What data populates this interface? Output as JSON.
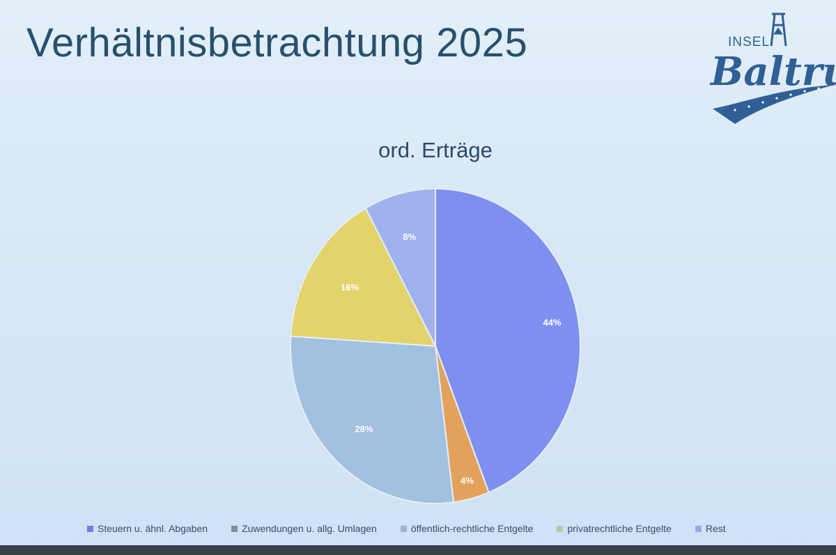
{
  "slide": {
    "title": "Verhältnisbetrachtung 2025"
  },
  "logo": {
    "small_text": "INSEL",
    "main_text": "Baltrum"
  },
  "chart_data": {
    "type": "pie",
    "title": "ord. Erträge",
    "legend_position": "bottom",
    "categories": [
      "Steuern u. ähnl. Abgaben",
      "Zuwendungen u. allg. Umlagen",
      "öffentlich-rechtliche Entgelte",
      "privatrechtliche Entgelte",
      "Rest"
    ],
    "values": [
      44,
      4,
      28,
      16,
      8
    ],
    "data_labels": [
      "44%",
      "4%",
      "28%",
      "16%",
      "8%"
    ],
    "colors": [
      "#7f8ff0",
      "#e2a25c",
      "#a2c0e0",
      "#e2d46a",
      "#9fb2ee"
    ],
    "legend_colors": [
      "#7080e2",
      "#888c94",
      "#9ab6d4",
      "#b4c8b0",
      "#98a8e6"
    ]
  }
}
